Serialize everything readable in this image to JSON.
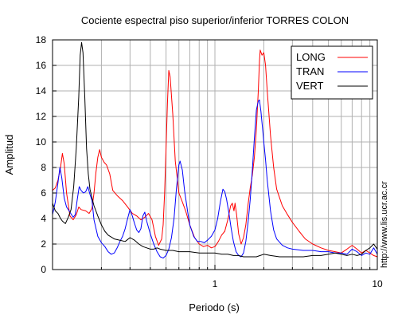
{
  "chart_data": {
    "type": "line",
    "title": "Cociente espectral piso superior/inferior  TORRES COLON",
    "xlabel": "Periodo (s)",
    "ylabel": "Amplitud",
    "xscale": "log",
    "xlim": [
      0.1,
      10
    ],
    "ylim": [
      0,
      18
    ],
    "xticks": [
      {
        "value": 1,
        "label": "1"
      },
      {
        "value": 10,
        "label": "10"
      }
    ],
    "yticks": [
      0,
      2,
      4,
      6,
      8,
      10,
      12,
      14,
      16,
      18
    ],
    "grid": true,
    "legend_position": "top-right",
    "side_text": "http://www.lis.ucr.ac.cr",
    "series": [
      {
        "name": "LONG",
        "color": "#ff0000",
        "points": [
          [
            0.1,
            6.2
          ],
          [
            0.104,
            6.4
          ],
          [
            0.108,
            7.0
          ],
          [
            0.112,
            8.0
          ],
          [
            0.115,
            9.1
          ],
          [
            0.118,
            8.3
          ],
          [
            0.122,
            6.0
          ],
          [
            0.128,
            4.2
          ],
          [
            0.134,
            3.9
          ],
          [
            0.14,
            4.3
          ],
          [
            0.145,
            4.9
          ],
          [
            0.15,
            4.7
          ],
          [
            0.16,
            4.6
          ],
          [
            0.168,
            4.4
          ],
          [
            0.175,
            4.8
          ],
          [
            0.18,
            6.0
          ],
          [
            0.185,
            7.6
          ],
          [
            0.19,
            8.8
          ],
          [
            0.195,
            9.4
          ],
          [
            0.2,
            8.8
          ],
          [
            0.208,
            8.4
          ],
          [
            0.215,
            8.2
          ],
          [
            0.225,
            7.5
          ],
          [
            0.235,
            6.2
          ],
          [
            0.25,
            5.8
          ],
          [
            0.27,
            5.4
          ],
          [
            0.29,
            4.9
          ],
          [
            0.31,
            4.4
          ],
          [
            0.33,
            4.2
          ],
          [
            0.35,
            3.9
          ],
          [
            0.37,
            4.1
          ],
          [
            0.39,
            4.4
          ],
          [
            0.41,
            3.9
          ],
          [
            0.43,
            2.6
          ],
          [
            0.45,
            1.9
          ],
          [
            0.47,
            2.4
          ],
          [
            0.48,
            3.5
          ],
          [
            0.49,
            6.0
          ],
          [
            0.5,
            9.5
          ],
          [
            0.51,
            13.0
          ],
          [
            0.52,
            15.6
          ],
          [
            0.53,
            15.1
          ],
          [
            0.55,
            12.2
          ],
          [
            0.57,
            8.5
          ],
          [
            0.6,
            6.0
          ],
          [
            0.63,
            5.3
          ],
          [
            0.66,
            4.6
          ],
          [
            0.7,
            3.5
          ],
          [
            0.75,
            2.5
          ],
          [
            0.8,
            2.0
          ],
          [
            0.85,
            1.8
          ],
          [
            0.9,
            1.9
          ],
          [
            0.95,
            1.7
          ],
          [
            1.0,
            1.8
          ],
          [
            1.05,
            2.2
          ],
          [
            1.1,
            2.7
          ],
          [
            1.15,
            3.0
          ],
          [
            1.2,
            3.9
          ],
          [
            1.25,
            5.0
          ],
          [
            1.28,
            5.2
          ],
          [
            1.31,
            4.6
          ],
          [
            1.33,
            5.2
          ],
          [
            1.36,
            4.3
          ],
          [
            1.4,
            2.8
          ],
          [
            1.45,
            2.0
          ],
          [
            1.5,
            2.5
          ],
          [
            1.55,
            3.5
          ],
          [
            1.6,
            5.1
          ],
          [
            1.65,
            6.4
          ],
          [
            1.7,
            7.4
          ],
          [
            1.75,
            8.8
          ],
          [
            1.8,
            11.0
          ],
          [
            1.85,
            14.0
          ],
          [
            1.88,
            16.3
          ],
          [
            1.9,
            17.2
          ],
          [
            1.95,
            16.8
          ],
          [
            2.0,
            17.0
          ],
          [
            2.05,
            16.0
          ],
          [
            2.1,
            14.0
          ],
          [
            2.2,
            10.5
          ],
          [
            2.3,
            8.0
          ],
          [
            2.4,
            6.3
          ],
          [
            2.6,
            5.0
          ],
          [
            2.8,
            4.3
          ],
          [
            3.0,
            3.7
          ],
          [
            3.3,
            3.0
          ],
          [
            3.6,
            2.4
          ],
          [
            4.0,
            2.0
          ],
          [
            4.5,
            1.7
          ],
          [
            5.0,
            1.5
          ],
          [
            5.5,
            1.4
          ],
          [
            6.0,
            1.3
          ],
          [
            6.5,
            1.6
          ],
          [
            7.0,
            1.9
          ],
          [
            7.5,
            1.6
          ],
          [
            8.0,
            1.3
          ],
          [
            8.5,
            1.5
          ],
          [
            9.0,
            1.3
          ],
          [
            9.5,
            1.1
          ],
          [
            10.0,
            1.0
          ]
        ]
      },
      {
        "name": "TRAN",
        "color": "#0000ff",
        "points": [
          [
            0.1,
            4.3
          ],
          [
            0.104,
            5.3
          ],
          [
            0.108,
            6.8
          ],
          [
            0.111,
            8.0
          ],
          [
            0.114,
            7.2
          ],
          [
            0.118,
            5.6
          ],
          [
            0.122,
            4.9
          ],
          [
            0.128,
            4.5
          ],
          [
            0.134,
            4.1
          ],
          [
            0.138,
            4.3
          ],
          [
            0.142,
            5.5
          ],
          [
            0.146,
            6.5
          ],
          [
            0.15,
            6.2
          ],
          [
            0.155,
            6.0
          ],
          [
            0.16,
            6.1
          ],
          [
            0.165,
            6.5
          ],
          [
            0.17,
            5.9
          ],
          [
            0.175,
            5.4
          ],
          [
            0.18,
            3.9
          ],
          [
            0.19,
            2.6
          ],
          [
            0.2,
            2.1
          ],
          [
            0.21,
            1.8
          ],
          [
            0.22,
            1.4
          ],
          [
            0.23,
            1.2
          ],
          [
            0.24,
            1.3
          ],
          [
            0.25,
            1.7
          ],
          [
            0.26,
            2.2
          ],
          [
            0.27,
            2.6
          ],
          [
            0.28,
            3.2
          ],
          [
            0.29,
            4.0
          ],
          [
            0.3,
            4.7
          ],
          [
            0.31,
            4.2
          ],
          [
            0.32,
            3.6
          ],
          [
            0.33,
            3.1
          ],
          [
            0.34,
            2.9
          ],
          [
            0.35,
            3.2
          ],
          [
            0.36,
            4.2
          ],
          [
            0.37,
            4.5
          ],
          [
            0.38,
            3.8
          ],
          [
            0.4,
            2.8
          ],
          [
            0.42,
            2.0
          ],
          [
            0.44,
            1.4
          ],
          [
            0.46,
            1.0
          ],
          [
            0.48,
            0.9
          ],
          [
            0.5,
            1.1
          ],
          [
            0.52,
            1.6
          ],
          [
            0.54,
            2.5
          ],
          [
            0.56,
            4.0
          ],
          [
            0.58,
            6.4
          ],
          [
            0.6,
            8.2
          ],
          [
            0.61,
            8.5
          ],
          [
            0.63,
            7.8
          ],
          [
            0.65,
            6.2
          ],
          [
            0.68,
            4.5
          ],
          [
            0.7,
            3.5
          ],
          [
            0.74,
            2.6
          ],
          [
            0.78,
            2.2
          ],
          [
            0.82,
            2.2
          ],
          [
            0.86,
            2.1
          ],
          [
            0.9,
            2.3
          ],
          [
            0.95,
            2.6
          ],
          [
            1.0,
            3.1
          ],
          [
            1.04,
            4.0
          ],
          [
            1.08,
            5.3
          ],
          [
            1.12,
            6.3
          ],
          [
            1.15,
            6.1
          ],
          [
            1.18,
            5.5
          ],
          [
            1.22,
            4.4
          ],
          [
            1.26,
            3.2
          ],
          [
            1.3,
            2.2
          ],
          [
            1.35,
            1.4
          ],
          [
            1.4,
            1.1
          ],
          [
            1.45,
            1.0
          ],
          [
            1.5,
            1.3
          ],
          [
            1.55,
            2.2
          ],
          [
            1.6,
            3.7
          ],
          [
            1.65,
            5.5
          ],
          [
            1.7,
            7.8
          ],
          [
            1.75,
            10.3
          ],
          [
            1.8,
            12.5
          ],
          [
            1.85,
            13.2
          ],
          [
            1.88,
            13.3
          ],
          [
            1.92,
            12.4
          ],
          [
            1.96,
            11.2
          ],
          [
            2.0,
            10.0
          ],
          [
            2.05,
            8.6
          ],
          [
            2.1,
            7.0
          ],
          [
            2.2,
            4.6
          ],
          [
            2.3,
            3.1
          ],
          [
            2.4,
            2.4
          ],
          [
            2.6,
            1.9
          ],
          [
            2.8,
            1.7
          ],
          [
            3.0,
            1.6
          ],
          [
            3.5,
            1.5
          ],
          [
            4.0,
            1.5
          ],
          [
            4.5,
            1.4
          ],
          [
            5.0,
            1.4
          ],
          [
            5.5,
            1.3
          ],
          [
            6.0,
            1.3
          ],
          [
            6.5,
            1.2
          ],
          [
            7.0,
            1.6
          ],
          [
            7.5,
            1.4
          ],
          [
            8.0,
            1.1
          ],
          [
            8.5,
            1.3
          ],
          [
            9.0,
            1.2
          ],
          [
            9.5,
            1.7
          ],
          [
            10.0,
            1.2
          ]
        ]
      },
      {
        "name": "VERT",
        "color": "#000000",
        "points": [
          [
            0.1,
            5.2
          ],
          [
            0.104,
            4.6
          ],
          [
            0.108,
            4.4
          ],
          [
            0.112,
            4.0
          ],
          [
            0.115,
            3.8
          ],
          [
            0.12,
            3.6
          ],
          [
            0.125,
            4.1
          ],
          [
            0.13,
            4.7
          ],
          [
            0.135,
            6.5
          ],
          [
            0.14,
            9.5
          ],
          [
            0.145,
            13.5
          ],
          [
            0.148,
            16.8
          ],
          [
            0.151,
            17.8
          ],
          [
            0.154,
            17.0
          ],
          [
            0.158,
            13.5
          ],
          [
            0.162,
            9.5
          ],
          [
            0.166,
            7.5
          ],
          [
            0.17,
            6.3
          ],
          [
            0.175,
            5.6
          ],
          [
            0.18,
            5.0
          ],
          [
            0.19,
            4.2
          ],
          [
            0.2,
            3.5
          ],
          [
            0.21,
            3.0
          ],
          [
            0.22,
            2.7
          ],
          [
            0.24,
            2.4
          ],
          [
            0.26,
            2.3
          ],
          [
            0.28,
            2.2
          ],
          [
            0.3,
            2.5
          ],
          [
            0.32,
            2.3
          ],
          [
            0.34,
            2.0
          ],
          [
            0.36,
            1.8
          ],
          [
            0.38,
            1.7
          ],
          [
            0.4,
            1.6
          ],
          [
            0.42,
            1.6
          ],
          [
            0.44,
            1.7
          ],
          [
            0.46,
            1.6
          ],
          [
            0.5,
            1.5
          ],
          [
            0.55,
            1.5
          ],
          [
            0.6,
            1.4
          ],
          [
            0.7,
            1.4
          ],
          [
            0.8,
            1.3
          ],
          [
            0.9,
            1.3
          ],
          [
            1.0,
            1.3
          ],
          [
            1.1,
            1.2
          ],
          [
            1.2,
            1.2
          ],
          [
            1.3,
            1.1
          ],
          [
            1.4,
            1.1
          ],
          [
            1.5,
            1.0
          ],
          [
            1.6,
            1.0
          ],
          [
            1.7,
            1.0
          ],
          [
            1.8,
            1.0
          ],
          [
            1.9,
            1.1
          ],
          [
            2.0,
            1.2
          ],
          [
            2.2,
            1.1
          ],
          [
            2.5,
            1.0
          ],
          [
            3.0,
            1.0
          ],
          [
            3.5,
            1.0
          ],
          [
            4.0,
            1.1
          ],
          [
            4.5,
            1.1
          ],
          [
            5.0,
            1.2
          ],
          [
            5.5,
            1.3
          ],
          [
            6.0,
            1.2
          ],
          [
            6.5,
            1.1
          ],
          [
            7.0,
            1.2
          ],
          [
            7.5,
            1.1
          ],
          [
            8.0,
            1.2
          ],
          [
            8.5,
            1.5
          ],
          [
            9.0,
            1.7
          ],
          [
            9.5,
            2.0
          ],
          [
            10.0,
            1.6
          ]
        ]
      }
    ]
  }
}
